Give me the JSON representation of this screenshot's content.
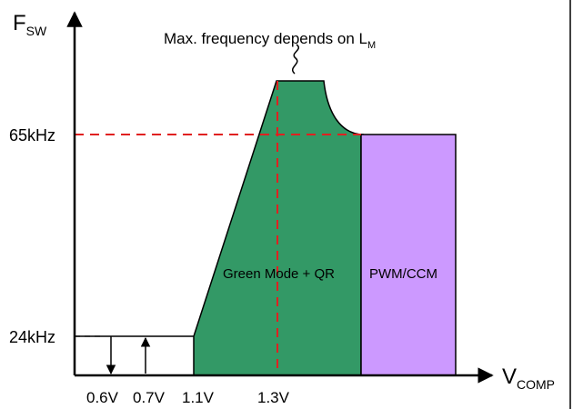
{
  "diagram": {
    "y_axis_label": {
      "main": "F",
      "sub": "SW"
    },
    "x_axis_label": {
      "main": "V",
      "sub": "COMP"
    },
    "annotation": {
      "main": "Max. frequency depends on L",
      "sub": "M"
    },
    "y_ticks": [
      "65kHz",
      "24kHz"
    ],
    "x_ticks": [
      "0.6V",
      "0.7V",
      "1.1V",
      "1.3V"
    ],
    "regions": [
      {
        "label": "Green Mode + QR",
        "color": "#339966"
      },
      {
        "label": "PWM/CCM",
        "color": "#cc99ff"
      }
    ],
    "colors": {
      "guide": "#e02020",
      "axis": "#000000"
    }
  }
}
